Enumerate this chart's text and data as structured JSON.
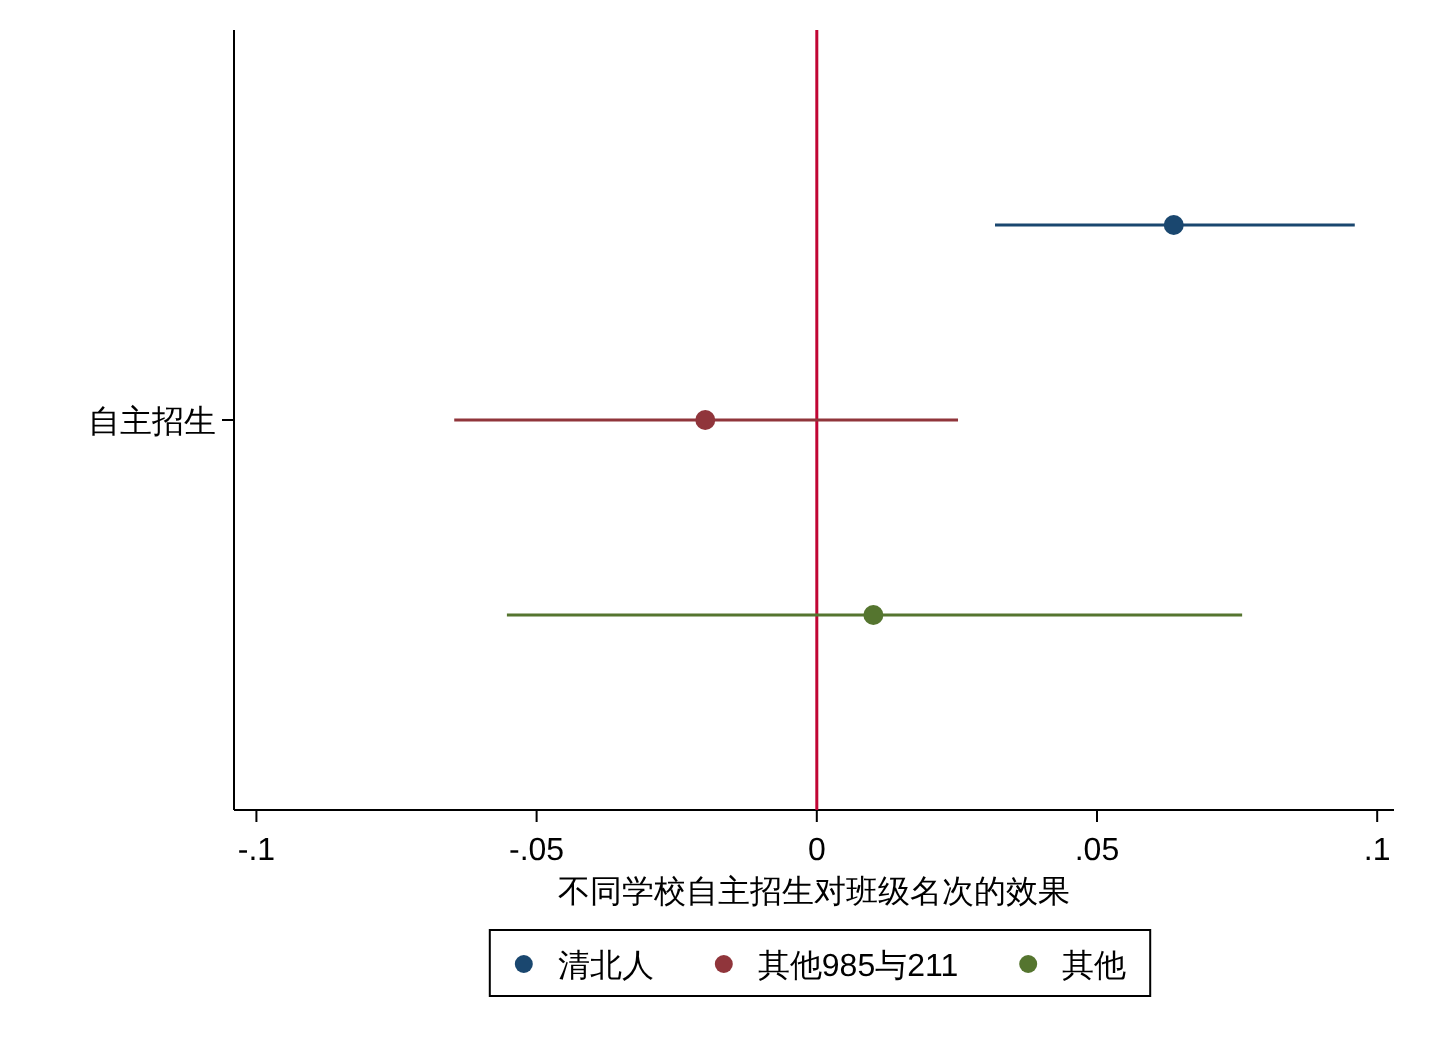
{
  "chart_data": {
    "type": "scatter",
    "orientation": "horizontal",
    "xlabel": "不同学校自主招生对班级名次的效果",
    "categories": [
      null,
      "自主招生",
      null
    ],
    "xlim": [
      -0.104,
      0.103
    ],
    "xticks": [
      {
        "value": -0.1,
        "label": "-.1"
      },
      {
        "value": -0.05,
        "label": "-.05"
      },
      {
        "value": 0,
        "label": "0"
      },
      {
        "value": 0.05,
        "label": ".05"
      },
      {
        "value": 0.1,
        "label": ".1"
      }
    ],
    "series": [
      {
        "name": "清北人",
        "color": "#1a476f",
        "values": [
          0.0637,
          null,
          null
        ],
        "errors": [
          [
            0.0318,
            0.096
          ],
          null,
          null
        ]
      },
      {
        "name": "其他985与211",
        "color": "#90353b",
        "values": [
          null,
          -0.0199,
          null
        ],
        "errors": [
          null,
          [
            -0.0647,
            0.0252
          ],
          null
        ]
      },
      {
        "name": "其他",
        "color": "#55752f",
        "values": [
          null,
          null,
          0.0101
        ],
        "errors": [
          null,
          null,
          [
            -0.0553,
            0.0759
          ]
        ]
      }
    ],
    "ref_lines": [
      {
        "axis": "x",
        "value": 0,
        "color": "#c10534"
      }
    ],
    "marker": "circle",
    "grid": false,
    "legend": "bottom"
  }
}
